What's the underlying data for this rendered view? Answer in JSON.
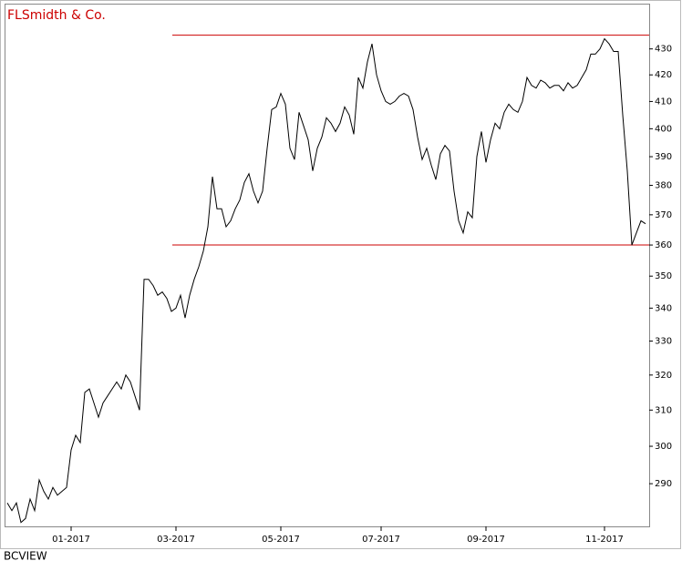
{
  "chart_data": {
    "type": "line",
    "title": "FLSmidth & Co.",
    "source": "BCVIEW",
    "log_scale": true,
    "color": "#000000",
    "ylim": [
      279,
      448
    ],
    "yticks": [
      290,
      300,
      310,
      320,
      330,
      340,
      350,
      360,
      370,
      380,
      390,
      400,
      410,
      420,
      430
    ],
    "xlim": [
      -0.6,
      140.8
    ],
    "xticks": [
      {
        "value": 14,
        "label": "01-2017"
      },
      {
        "value": 37,
        "label": "03-2017"
      },
      {
        "value": 60,
        "label": "05-2017"
      },
      {
        "value": 82,
        "label": "07-2017"
      },
      {
        "value": 105,
        "label": "09-2017"
      },
      {
        "value": 131,
        "label": "11-2017"
      }
    ],
    "reference_lines": [
      {
        "value": 435.4,
        "color": "#cc0000"
      },
      {
        "value": 360,
        "color": "#cc0000"
      }
    ],
    "values": [
      285,
      283,
      285,
      280,
      281,
      286,
      283,
      291,
      288,
      286,
      289,
      287,
      288,
      289,
      299,
      303,
      301,
      315,
      316,
      312,
      308,
      312,
      314,
      316,
      318,
      316,
      320,
      318,
      314,
      310,
      349,
      349,
      347,
      344,
      345,
      343,
      339,
      340,
      344,
      337,
      344,
      349,
      353,
      358,
      366,
      383,
      372,
      372,
      366,
      368,
      372,
      375,
      381,
      384,
      378,
      374,
      378,
      393,
      407,
      408,
      413,
      409,
      393,
      389,
      406,
      401,
      396,
      385,
      393,
      397,
      404,
      402,
      399,
      402,
      408,
      405,
      398,
      419,
      415,
      425,
      432,
      420,
      414,
      410,
      409,
      410,
      412,
      413,
      412,
      407,
      397,
      389,
      393,
      387,
      382,
      391,
      394,
      392,
      378,
      368,
      364,
      371,
      369,
      390,
      399,
      388,
      396,
      402,
      400,
      406,
      409,
      407,
      406,
      410,
      419,
      416,
      415,
      418,
      417,
      415,
      416,
      416,
      414,
      417,
      415,
      416,
      419,
      422,
      428,
      428,
      430,
      434,
      432,
      429,
      429,
      405,
      385,
      360,
      364,
      368,
      367
    ]
  }
}
